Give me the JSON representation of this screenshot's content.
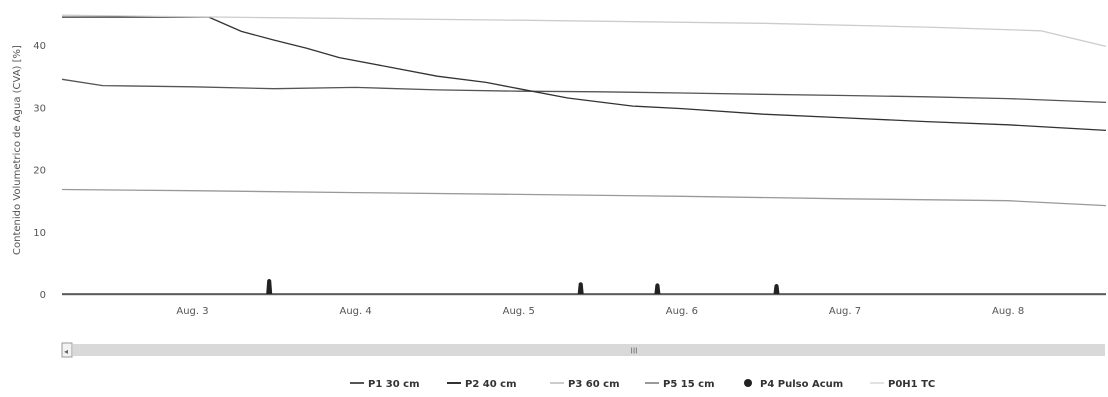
{
  "chart_data": {
    "type": "line",
    "title": "",
    "ylabel": "Contenido Volumetrico de Agua (CVA) [%]",
    "xlabel": "",
    "ylim": [
      0,
      45
    ],
    "yticks": [
      0,
      10,
      20,
      30,
      40
    ],
    "xlim": [
      2.2,
      8.6
    ],
    "xticks": [
      {
        "value": 3,
        "label": "Aug. 3"
      },
      {
        "value": 4,
        "label": "Aug. 4"
      },
      {
        "value": 5,
        "label": "Aug. 5"
      },
      {
        "value": 6,
        "label": "Aug. 6"
      },
      {
        "value": 7,
        "label": "Aug. 7"
      },
      {
        "value": 8,
        "label": "Aug. 8"
      }
    ],
    "grid": false,
    "legend_position": "bottom",
    "series": [
      {
        "name": "P1 30 cm",
        "color": "#555555",
        "kind": "line",
        "x": [
          2.2,
          2.45,
          3.0,
          3.5,
          4.0,
          4.5,
          5.0,
          5.5,
          6.0,
          6.5,
          7.0,
          7.5,
          8.0,
          8.6
        ],
        "y": [
          34.5,
          33.5,
          33.3,
          33.0,
          33.2,
          32.8,
          32.6,
          32.5,
          32.3,
          32.1,
          31.9,
          31.7,
          31.4,
          30.8
        ]
      },
      {
        "name": "P2 40 cm",
        "color": "#333333",
        "kind": "line",
        "x": [
          2.2,
          3.1,
          3.3,
          3.5,
          3.7,
          3.9,
          4.2,
          4.5,
          4.8,
          5.0,
          5.3,
          5.7,
          6.0,
          6.5,
          7.0,
          7.5,
          8.0,
          8.6
        ],
        "y": [
          44.5,
          44.5,
          42.2,
          40.8,
          39.5,
          38.0,
          36.5,
          35.0,
          34.0,
          33.0,
          31.5,
          30.2,
          29.8,
          28.9,
          28.3,
          27.7,
          27.2,
          26.3
        ]
      },
      {
        "name": "P3 60 cm",
        "color": "#cccccc",
        "kind": "line",
        "x": [
          2.2,
          3.5,
          5.0,
          6.5,
          7.5,
          8.2,
          8.6
        ],
        "y": [
          44.8,
          44.4,
          44.0,
          43.5,
          42.9,
          42.3,
          39.8
        ]
      },
      {
        "name": "P5 15 cm",
        "color": "#999999",
        "kind": "line",
        "x": [
          2.2,
          3.0,
          4.0,
          5.0,
          6.0,
          7.0,
          8.0,
          8.6
        ],
        "y": [
          16.8,
          16.6,
          16.3,
          16.0,
          15.7,
          15.3,
          15.0,
          14.2
        ]
      },
      {
        "name": "P4 Pulso Acum",
        "color": "#222222",
        "kind": "spikes",
        "x": [
          2.2,
          3.47,
          5.38,
          5.85,
          6.58,
          8.6
        ],
        "y": [
          0,
          2.5,
          2.0,
          1.8,
          1.7,
          0
        ]
      },
      {
        "name": "P0H1 TC",
        "color": "#e2e2e2",
        "kind": "hidden",
        "x": [],
        "y": []
      }
    ]
  },
  "navigator": {
    "grip_symbol": "III",
    "left_arrow": "◂"
  }
}
